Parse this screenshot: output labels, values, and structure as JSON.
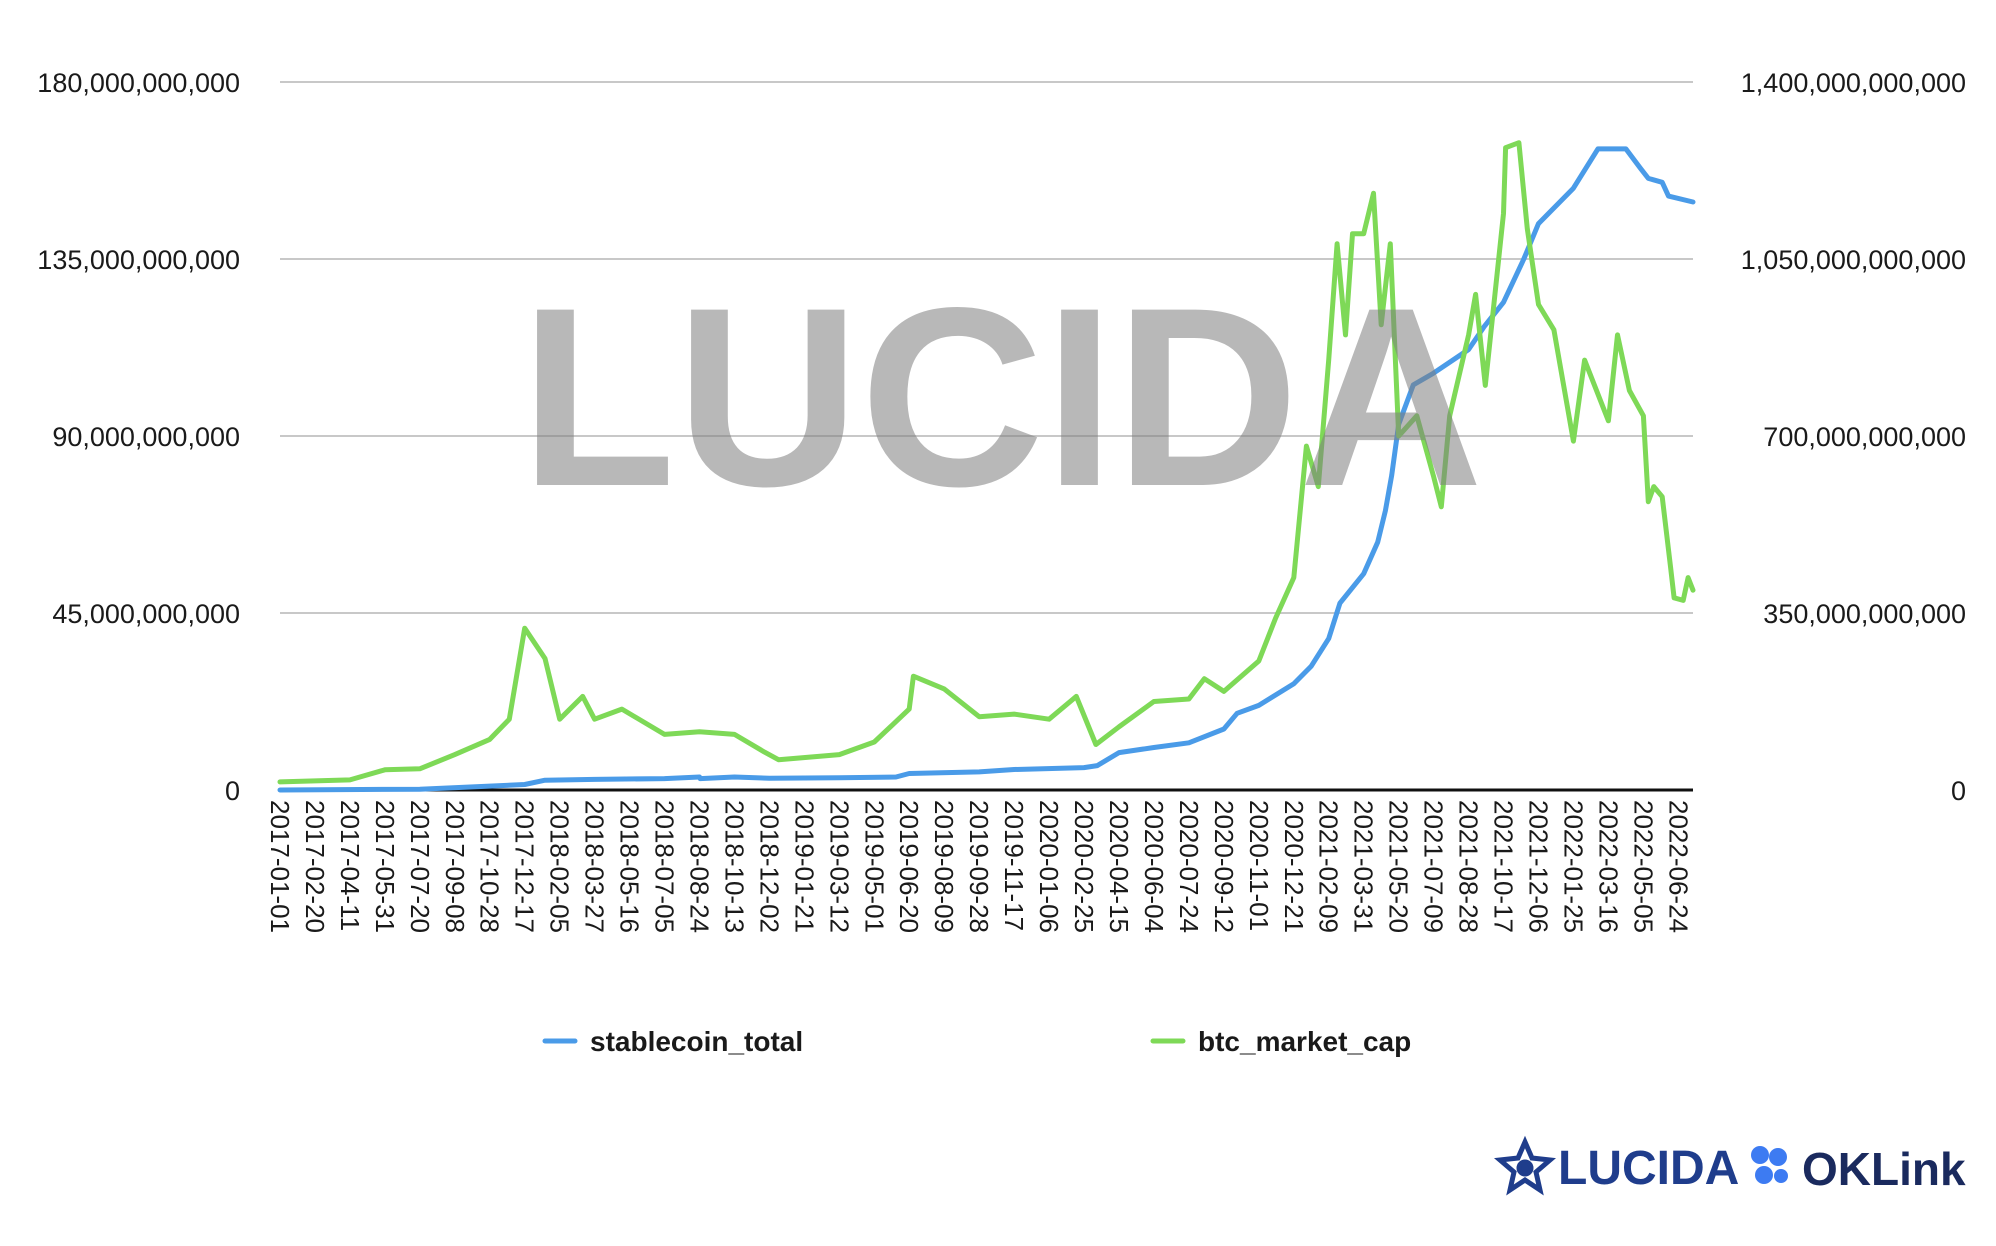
{
  "watermark": "LUCIDA",
  "brands": {
    "lucida": {
      "label": "LUCIDA",
      "color": "#1f3d8c"
    },
    "oklink": {
      "label": "OKLink",
      "color": "#1a2a5e",
      "icon_color": "#3d7bf2"
    }
  },
  "chart_data": {
    "type": "line",
    "title": "",
    "xlabel": "",
    "ylabel": "",
    "grid": true,
    "legend_position": "bottom",
    "x_range": [
      "2017-01-01",
      "2022-07-15"
    ],
    "y_left": {
      "min": 0,
      "max": 180000000000,
      "ticks": [
        0,
        45000000000,
        90000000000,
        135000000000,
        180000000000
      ],
      "tick_labels": [
        "0",
        "45,000,000,000",
        "90,000,000,000",
        "135,000,000,000",
        "180,000,000,000"
      ]
    },
    "y_right": {
      "min": 0,
      "max": 1400000000000,
      "ticks": [
        0,
        350000000000,
        700000000000,
        1050000000000,
        1400000000000
      ],
      "tick_labels": [
        "0",
        "350,000,000,000",
        "700,000,000,000",
        "1,050,000,000,000",
        "1,400,000,000,000"
      ]
    },
    "x_tick_labels": [
      "2017-01-01",
      "2017-02-20",
      "2017-04-11",
      "2017-05-31",
      "2017-07-20",
      "2017-09-08",
      "2017-10-28",
      "2017-12-17",
      "2018-02-05",
      "2018-03-27",
      "2018-05-16",
      "2018-07-05",
      "2018-08-24",
      "2018-10-13",
      "2018-12-02",
      "2019-01-21",
      "2019-03-12",
      "2019-05-01",
      "2019-06-20",
      "2019-08-09",
      "2019-09-28",
      "2019-11-17",
      "2020-01-06",
      "2020-02-25",
      "2020-04-15",
      "2020-06-04",
      "2020-07-24",
      "2020-09-12",
      "2020-11-01",
      "2020-12-21",
      "2021-02-09",
      "2021-03-31",
      "2021-05-20",
      "2021-07-09",
      "2021-08-28",
      "2021-10-17",
      "2021-12-06",
      "2022-01-25",
      "2022-03-16",
      "2022-05-05",
      "2022-06-24"
    ],
    "series": [
      {
        "name": "stablecoin_total",
        "axis": "left",
        "color": "#4a9be8",
        "points": [
          [
            "2017-01-01",
            0
          ],
          [
            "2017-07-20",
            200000000
          ],
          [
            "2017-12-17",
            1400000000
          ],
          [
            "2018-01-15",
            2500000000
          ],
          [
            "2018-03-27",
            2700000000
          ],
          [
            "2018-07-05",
            2900000000
          ],
          [
            "2018-08-24",
            3300000000
          ],
          [
            "2018-08-25",
            2900000000
          ],
          [
            "2018-10-13",
            3300000000
          ],
          [
            "2018-12-02",
            3000000000
          ],
          [
            "2019-03-12",
            3100000000
          ],
          [
            "2019-06-01",
            3300000000
          ],
          [
            "2019-06-20",
            4200000000
          ],
          [
            "2019-09-28",
            4600000000
          ],
          [
            "2019-11-17",
            5200000000
          ],
          [
            "2020-02-25",
            5700000000
          ],
          [
            "2020-03-15",
            6200000000
          ],
          [
            "2020-04-15",
            9500000000
          ],
          [
            "2020-06-04",
            10800000000
          ],
          [
            "2020-07-24",
            12000000000
          ],
          [
            "2020-09-12",
            15500000000
          ],
          [
            "2020-10-01",
            19500000000
          ],
          [
            "2020-11-01",
            21500000000
          ],
          [
            "2020-12-21",
            27000000000
          ],
          [
            "2021-01-15",
            31500000000
          ],
          [
            "2021-02-09",
            38500000000
          ],
          [
            "2021-02-25",
            47500000000
          ],
          [
            "2021-03-31",
            55000000000
          ],
          [
            "2021-04-20",
            63000000000
          ],
          [
            "2021-05-01",
            71000000000
          ],
          [
            "2021-05-10",
            80000000000
          ],
          [
            "2021-05-20",
            93000000000
          ],
          [
            "2021-06-10",
            103000000000
          ],
          [
            "2021-07-09",
            106000000000
          ],
          [
            "2021-08-28",
            112000000000
          ],
          [
            "2021-09-20",
            118000000000
          ],
          [
            "2021-10-17",
            124000000000
          ],
          [
            "2021-11-15",
            135000000000
          ],
          [
            "2021-12-06",
            144000000000
          ],
          [
            "2022-01-25",
            153000000000
          ],
          [
            "2022-03-01",
            163000000000
          ],
          [
            "2022-04-10",
            163000000000
          ],
          [
            "2022-05-01",
            158000000000
          ],
          [
            "2022-05-12",
            155500000000
          ],
          [
            "2022-06-01",
            154500000000
          ],
          [
            "2022-06-10",
            151000000000
          ],
          [
            "2022-07-15",
            149500000000
          ]
        ]
      },
      {
        "name": "btc_market_cap",
        "axis": "right",
        "color": "#7ed957",
        "points": [
          [
            "2017-01-01",
            16000000000
          ],
          [
            "2017-02-20",
            18000000000
          ],
          [
            "2017-04-11",
            20000000000
          ],
          [
            "2017-05-31",
            40000000000
          ],
          [
            "2017-07-20",
            42000000000
          ],
          [
            "2017-09-08",
            70000000000
          ],
          [
            "2017-10-28",
            100000000000
          ],
          [
            "2017-11-25",
            140000000000
          ],
          [
            "2017-12-17",
            320000000000
          ],
          [
            "2018-01-15",
            260000000000
          ],
          [
            "2018-02-05",
            140000000000
          ],
          [
            "2018-03-10",
            185000000000
          ],
          [
            "2018-03-27",
            140000000000
          ],
          [
            "2018-05-05",
            160000000000
          ],
          [
            "2018-07-05",
            110000000000
          ],
          [
            "2018-08-24",
            115000000000
          ],
          [
            "2018-10-13",
            110000000000
          ],
          [
            "2018-11-25",
            75000000000
          ],
          [
            "2018-12-15",
            60000000000
          ],
          [
            "2019-03-12",
            70000000000
          ],
          [
            "2019-05-01",
            95000000000
          ],
          [
            "2019-06-20",
            160000000000
          ],
          [
            "2019-06-26",
            225000000000
          ],
          [
            "2019-08-09",
            200000000000
          ],
          [
            "2019-09-28",
            145000000000
          ],
          [
            "2019-11-17",
            150000000000
          ],
          [
            "2020-01-06",
            140000000000
          ],
          [
            "2020-02-14",
            185000000000
          ],
          [
            "2020-03-13",
            90000000000
          ],
          [
            "2020-04-15",
            125000000000
          ],
          [
            "2020-06-04",
            175000000000
          ],
          [
            "2020-07-24",
            180000000000
          ],
          [
            "2020-08-15",
            220000000000
          ],
          [
            "2020-09-12",
            195000000000
          ],
          [
            "2020-11-01",
            255000000000
          ],
          [
            "2020-11-25",
            340000000000
          ],
          [
            "2020-12-21",
            420000000000
          ],
          [
            "2021-01-08",
            680000000000
          ],
          [
            "2021-01-25",
            600000000000
          ],
          [
            "2021-02-09",
            850000000000
          ],
          [
            "2021-02-21",
            1080000000000
          ],
          [
            "2021-03-05",
            900000000000
          ],
          [
            "2021-03-15",
            1100000000000
          ],
          [
            "2021-03-31",
            1100000000000
          ],
          [
            "2021-04-14",
            1180000000000
          ],
          [
            "2021-04-25",
            920000000000
          ],
          [
            "2021-05-08",
            1080000000000
          ],
          [
            "2021-05-20",
            700000000000
          ],
          [
            "2021-06-15",
            740000000000
          ],
          [
            "2021-07-09",
            620000000000
          ],
          [
            "2021-07-20",
            560000000000
          ],
          [
            "2021-08-01",
            740000000000
          ],
          [
            "2021-08-28",
            900000000000
          ],
          [
            "2021-09-07",
            980000000000
          ],
          [
            "2021-09-21",
            800000000000
          ],
          [
            "2021-10-17",
            1140000000000
          ],
          [
            "2021-10-20",
            1270000000000
          ],
          [
            "2021-11-08",
            1280000000000
          ],
          [
            "2021-11-20",
            1110000000000
          ],
          [
            "2021-12-06",
            960000000000
          ],
          [
            "2021-12-28",
            910000000000
          ],
          [
            "2022-01-25",
            690000000000
          ],
          [
            "2022-02-10",
            850000000000
          ],
          [
            "2022-03-16",
            730000000000
          ],
          [
            "2022-03-29",
            900000000000
          ],
          [
            "2022-04-15",
            790000000000
          ],
          [
            "2022-05-05",
            740000000000
          ],
          [
            "2022-05-12",
            570000000000
          ],
          [
            "2022-05-20",
            600000000000
          ],
          [
            "2022-06-01",
            580000000000
          ],
          [
            "2022-06-13",
            440000000000
          ],
          [
            "2022-06-18",
            380000000000
          ],
          [
            "2022-07-01",
            375000000000
          ],
          [
            "2022-07-08",
            420000000000
          ],
          [
            "2022-07-15",
            395000000000
          ]
        ]
      }
    ]
  }
}
